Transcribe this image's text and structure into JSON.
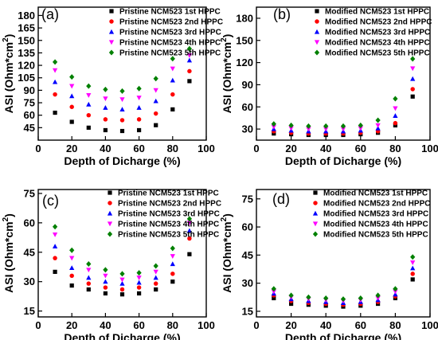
{
  "chart_data": [
    {
      "type": "scatter",
      "panel_label": "(a)",
      "xlabel": "Depth of Dicharge (%)",
      "ylabel": "ASI (Ohm*cm",
      "ylabel_sup": "2",
      "ylabel_close": ")",
      "xlim": [
        0,
        100
      ],
      "ylim": [
        30,
        190
      ],
      "xticks": [
        0,
        20,
        40,
        60,
        80,
        100
      ],
      "yticks": [
        45,
        60,
        75,
        90,
        105,
        120,
        135,
        150,
        165,
        180
      ],
      "legend_position": "top-right",
      "x": [
        10,
        20,
        30,
        40,
        50,
        60,
        70,
        80,
        90
      ],
      "series": [
        {
          "name": "Pristine NCM523 1st HPPC",
          "color": "#000000",
          "marker": "square",
          "values": [
            63,
            52,
            45,
            42,
            41,
            42,
            48,
            67,
            101
          ]
        },
        {
          "name": "Pristine NCM523 2nd HPPC",
          "color": "#ff0000",
          "marker": "circle",
          "values": [
            85,
            70,
            60,
            55,
            54,
            55,
            62,
            85,
            113
          ]
        },
        {
          "name": "Pristine NCM523 3rd HPPC",
          "color": "#0000ff",
          "marker": "triangle-up",
          "values": [
            100,
            83,
            73,
            69,
            67,
            69,
            77,
            102,
            126
          ]
        },
        {
          "name": "Pristine NCM523 4th HPPC",
          "color": "#ff00ff",
          "marker": "triangle-down",
          "values": [
            114,
            95,
            84,
            80,
            79,
            81,
            90,
            116,
            132
          ]
        },
        {
          "name": "Pristine NCM523 5th HPPC",
          "color": "#008000",
          "marker": "diamond",
          "values": [
            124,
            106,
            95,
            91,
            89,
            92,
            104,
            128,
            140
          ]
        }
      ]
    },
    {
      "type": "scatter",
      "panel_label": "(b)",
      "xlabel": "Depth of Dicharge (%)",
      "ylabel": "ASI (Ohm*cm",
      "ylabel_sup": "2",
      "ylabel_close": ")",
      "xlim": [
        0,
        100
      ],
      "ylim": [
        15,
        195
      ],
      "xticks": [
        0,
        20,
        40,
        60,
        80,
        100
      ],
      "yticks": [
        30,
        60,
        90,
        120,
        150,
        180
      ],
      "legend_position": "top-right",
      "x": [
        10,
        20,
        30,
        40,
        50,
        60,
        70,
        80,
        90
      ],
      "series": [
        {
          "name": "Modified NCM523 1st HPPC",
          "color": "#000000",
          "marker": "square",
          "values": [
            24,
            23,
            22,
            22,
            22,
            23,
            25,
            35,
            74
          ]
        },
        {
          "name": "Modified NCM523 2nd HPPC",
          "color": "#ff0000",
          "marker": "circle",
          "values": [
            27,
            25,
            24,
            24,
            24,
            25,
            27,
            38,
            84
          ]
        },
        {
          "name": "Modified NCM523 3rd HPPC",
          "color": "#0000ff",
          "marker": "triangle-up",
          "values": [
            30,
            28,
            27,
            27,
            27,
            28,
            31,
            48,
            98
          ]
        },
        {
          "name": "Modified NCM523 4th HPPC",
          "color": "#ff00ff",
          "marker": "triangle-down",
          "values": [
            33,
            31,
            30,
            30,
            30,
            31,
            35,
            58,
            112
          ]
        },
        {
          "name": "Modified NCM523 5th HPPC",
          "color": "#008000",
          "marker": "diamond",
          "values": [
            37,
            35,
            34,
            34,
            34,
            35,
            42,
            71,
            125
          ]
        }
      ]
    },
    {
      "type": "scatter",
      "panel_label": "(c)",
      "xlabel": "Depth of Dicharge (%)",
      "ylabel": "ASI (Ohm*cm",
      "ylabel_sup": "2",
      "ylabel_close": ")",
      "xlim": [
        0,
        100
      ],
      "ylim": [
        12,
        77
      ],
      "xticks": [
        0,
        20,
        40,
        60,
        80,
        100
      ],
      "yticks": [
        15,
        30,
        45,
        60,
        75
      ],
      "legend_position": "top-right",
      "x": [
        10,
        20,
        30,
        40,
        50,
        60,
        70,
        80,
        90
      ],
      "series": [
        {
          "name": "Pristine NCM523 1st HPPC",
          "color": "#000000",
          "marker": "square",
          "values": [
            35,
            28,
            26,
            24,
            23.5,
            24,
            26,
            30,
            44
          ]
        },
        {
          "name": "Pristine NCM523 2nd HPPC",
          "color": "#ff0000",
          "marker": "circle",
          "values": [
            42,
            33,
            29,
            27,
            26,
            27,
            29,
            34,
            52
          ]
        },
        {
          "name": "Pristine NCM523 3rd HPPC",
          "color": "#0000ff",
          "marker": "triangle-up",
          "values": [
            48,
            37,
            32,
            30,
            29,
            29.5,
            32,
            39,
            56
          ]
        },
        {
          "name": "Pristine NCM523 4th HPPC",
          "color": "#ff00ff",
          "marker": "triangle-down",
          "values": [
            54,
            42,
            36,
            33,
            31,
            32,
            35,
            43,
            60
          ]
        },
        {
          "name": "Pristine NCM523 5th HPPC",
          "color": "#008000",
          "marker": "diamond",
          "values": [
            58,
            46,
            39,
            36,
            34,
            34.5,
            38,
            47,
            62
          ]
        }
      ]
    },
    {
      "type": "scatter",
      "panel_label": "(d)",
      "xlabel": "Depth of Dicharge (%)",
      "ylabel": "ASI (Ohm*cm",
      "ylabel_sup": "2",
      "ylabel_close": ")",
      "xlim": [
        0,
        100
      ],
      "ylim": [
        12,
        80
      ],
      "xticks": [
        0,
        20,
        40,
        60,
        80,
        100
      ],
      "yticks": [
        15,
        30,
        45,
        60,
        75
      ],
      "legend_position": "top-right",
      "x": [
        10,
        20,
        30,
        40,
        50,
        60,
        70,
        80,
        90
      ],
      "series": [
        {
          "name": "Modified NCM523 1st HPPC",
          "color": "#000000",
          "marker": "square",
          "values": [
            22,
            19,
            18.5,
            18,
            17.5,
            18,
            19,
            22,
            32
          ]
        },
        {
          "name": "Modified NCM523 2nd HPPC",
          "color": "#ff0000",
          "marker": "circle",
          "values": [
            23.5,
            20.5,
            19.5,
            19,
            18.5,
            19,
            20,
            23,
            35
          ]
        },
        {
          "name": "Modified NCM523 3rd HPPC",
          "color": "#0000ff",
          "marker": "triangle-up",
          "values": [
            24.5,
            21.5,
            20.5,
            20,
            19.5,
            20,
            21,
            24,
            38
          ]
        },
        {
          "name": "Modified NCM523  4th HPPC",
          "color": "#ff00ff",
          "marker": "triangle-down",
          "values": [
            25.5,
            22.5,
            21.5,
            21,
            20.5,
            21,
            22,
            25.5,
            41
          ]
        },
        {
          "name": "Modified NCM523  5th HPPC",
          "color": "#008000",
          "marker": "diamond",
          "values": [
            27,
            23.5,
            22.5,
            22,
            21.5,
            22,
            23.5,
            27,
            44
          ]
        }
      ]
    }
  ]
}
